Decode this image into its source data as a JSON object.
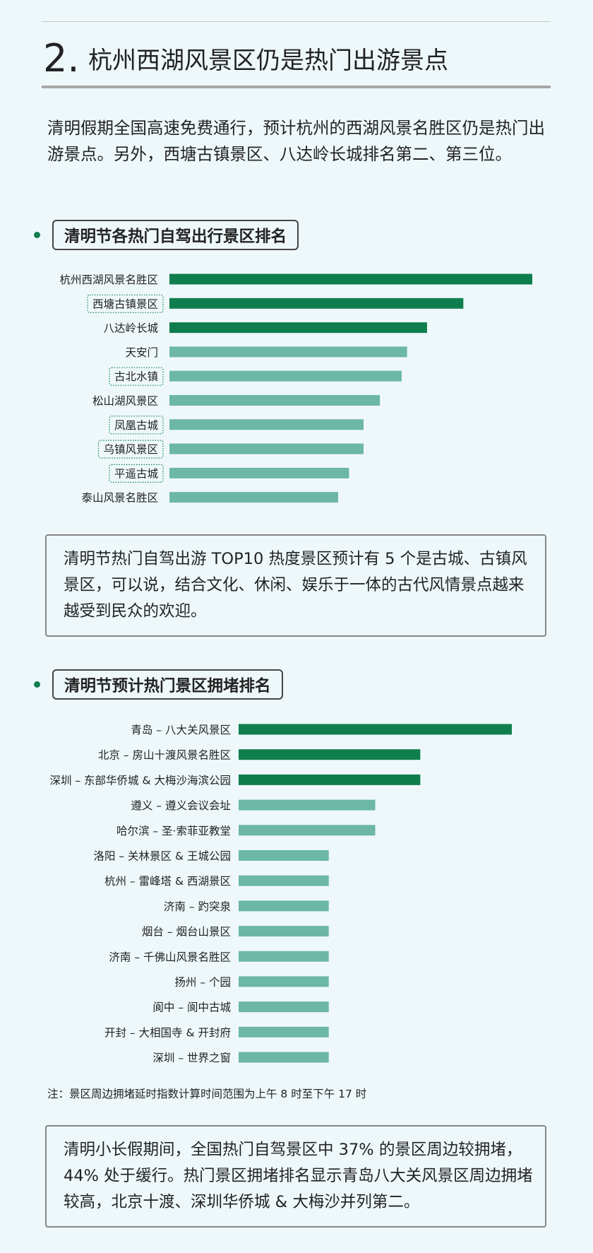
{
  "heading": {
    "number": "2.",
    "title": "杭州西湖风景区仍是热门出游景点"
  },
  "intro": "清明假期全国高速免费通行，预计杭州的西湖风景名胜区仍是热门出游景点。另外，西塘古镇景区、八达岭长城排名第二、第三位。",
  "colors": {
    "dark_bar": "#0f7e4e",
    "light_bar": "#6cb7a6",
    "dot": "#0f7e4e",
    "dotted_border": "#0f7e4e"
  },
  "section1": {
    "label": "清明节各热门自驾出行景区排名"
  },
  "section2": {
    "label": "清明节预计热门景区拥堵排名"
  },
  "note1": "清明节热门自驾出游 TOP10 热度景区预计有 5 个是古城、古镇风景区，可以说，结合文化、休闲、娱乐于一体的古代风情景点越来越受到民众的欢迎。",
  "footnote": "注：景区周边拥堵延时指数计算时间范围为上午 8 时至下午 17 时",
  "note2": "清明小长假期间，全国热门自驾景区中 37% 的景区周边较拥堵，44% 处于缓行。热门景区拥堵排名显示青岛八大关风景区周边拥堵较高，北京十渡、深圳华侨城 & 大梅沙并列第二。",
  "chart_data": [
    {
      "type": "bar",
      "orientation": "horizontal",
      "title": "清明节各热门自驾出行景区排名",
      "categories": [
        "杭州西湖风景名胜区",
        "西塘古镇景区",
        "八达岭长城",
        "天安门",
        "古北水镇",
        "松山湖风景区",
        "凤凰古城",
        "乌镇风景区",
        "平遥古城",
        "泰山风景名胜区"
      ],
      "values": [
        100,
        81,
        71,
        65.5,
        64,
        58,
        53.5,
        53.5,
        49.5,
        46.5
      ],
      "highlight_top": 3,
      "boxed_labels": [
        "西塘古镇景区",
        "古北水镇",
        "凤凰古城",
        "乌镇风景区",
        "平遥古城"
      ],
      "axis_visible": false,
      "grid": false
    },
    {
      "type": "bar",
      "orientation": "horizontal",
      "title": "清明节预计热门景区拥堵排名",
      "categories": [
        "青岛 – 八大关风景区",
        "北京 – 房山十渡风景名胜区",
        "深圳 – 东部华侨城 & 大梅沙海滨公园",
        "遵义 – 遵义会议会址",
        "哈尔滨 – 圣·索菲亚教堂",
        "洛阳 – 关林景区 & 王城公园",
        "杭州 – 雷峰塔 & 西湖景区",
        "济南 – 趵突泉",
        "烟台 – 烟台山景区",
        "济南 – 千佛山风景名胜区",
        "扬州 – 个园",
        "阆中 – 阆中古城",
        "开封 – 大相国寺 & 开封府",
        "深圳 – 世界之窗"
      ],
      "values": [
        100,
        66.5,
        66.5,
        50,
        50,
        33,
        33,
        33,
        33,
        33,
        33,
        33,
        33,
        33
      ],
      "highlight_top": 3,
      "boxed_labels": [],
      "axis_visible": false,
      "grid": false
    }
  ]
}
